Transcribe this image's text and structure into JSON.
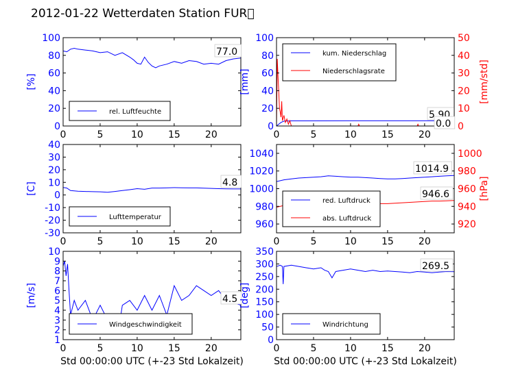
{
  "title": "2012-01-22 Wetterdaten Station FUR\u0000",
  "xlabel": "Std 00:00:00 UTC (+-23 Std Lokalzeit)",
  "colors": {
    "primary": "#0000ff",
    "secondary": "#ff0000",
    "axis": "#000000"
  },
  "chart_data": [
    {
      "type": "line",
      "ylabel": "[%]",
      "xlim": [
        0,
        24
      ],
      "ylim": [
        0,
        100
      ],
      "xticks": [
        0,
        5,
        10,
        15,
        20
      ],
      "yticks": [
        0,
        20,
        40,
        60,
        80,
        100
      ],
      "legend": [
        "rel. Luftfeuchte"
      ],
      "legend_position": "lower-left",
      "last_value_label": "77.0",
      "series": [
        {
          "name": "rel. Luftfeuchte",
          "color": "#0000ff",
          "x": [
            0,
            0.5,
            1,
            1.5,
            2,
            3,
            4,
            5,
            6,
            7,
            8,
            9,
            9.5,
            10,
            10.5,
            11,
            11.5,
            12,
            12.5,
            13,
            14,
            15,
            16,
            17,
            18,
            19,
            20,
            21,
            22,
            23,
            24
          ],
          "y": [
            85,
            84,
            87,
            88,
            87,
            86,
            85,
            83,
            84,
            80,
            83,
            78,
            75,
            71,
            70,
            78,
            72,
            68,
            66,
            68,
            70,
            73,
            71,
            74,
            73,
            70,
            71,
            70,
            74,
            76,
            77
          ]
        }
      ]
    },
    {
      "type": "line",
      "ylabel": "[mm]",
      "ylabel_right": "[mm/std]",
      "xlim": [
        0,
        24
      ],
      "ylim": [
        0,
        100
      ],
      "ylim_right": [
        0,
        50
      ],
      "xticks": [
        0,
        5,
        10,
        15,
        20
      ],
      "yticks": [
        0,
        20,
        40,
        60,
        80,
        100
      ],
      "yticks_right": [
        0,
        10,
        20,
        30,
        40,
        50
      ],
      "legend": [
        "kum. Niederschlag",
        "Niederschlagsrate"
      ],
      "legend_position": "upper-left",
      "last_value_labels": [
        "5.90",
        "0.0"
      ],
      "series": [
        {
          "name": "kum. Niederschlag",
          "color": "#0000ff",
          "axis": "left",
          "x": [
            0,
            0.3,
            0.6,
            1,
            2,
            5,
            10,
            15,
            20,
            24
          ],
          "y": [
            0,
            2,
            4,
            5.5,
            5.8,
            5.8,
            5.9,
            5.9,
            5.9,
            5.9
          ]
        },
        {
          "name": "Niederschlagsrate",
          "color": "#ff0000",
          "axis": "right",
          "x": [
            0,
            0.1,
            0.2,
            0.3,
            0.4,
            0.5,
            0.6,
            0.7,
            0.8,
            1.0,
            1.2,
            1.4,
            1.6,
            1.8,
            2.0,
            2.5,
            5,
            11,
            11.1,
            11.2,
            15,
            19,
            19.1,
            19.2,
            24
          ],
          "y": [
            0,
            38,
            28,
            20,
            10,
            8,
            5,
            14,
            3,
            6,
            2,
            4,
            1,
            3,
            0,
            0,
            0,
            0,
            1,
            0,
            0,
            0,
            1,
            0,
            0
          ]
        }
      ]
    },
    {
      "type": "line",
      "ylabel": "[C]",
      "xlim": [
        0,
        24
      ],
      "ylim": [
        -30,
        40
      ],
      "xticks": [
        0,
        5,
        10,
        15,
        20
      ],
      "yticks": [
        -30,
        -20,
        -10,
        0,
        10,
        20,
        30,
        40
      ],
      "legend": [
        "Lufttemperatur"
      ],
      "legend_position": "lower-left",
      "last_value_label": "4.8",
      "series": [
        {
          "name": "Lufttemperatur",
          "color": "#0000ff",
          "x": [
            0,
            0.5,
            1,
            2,
            3,
            4,
            5,
            6,
            7,
            8,
            9,
            10,
            11,
            12,
            13,
            14,
            15,
            16,
            17,
            18,
            19,
            20,
            21,
            22,
            23,
            24
          ],
          "y": [
            6,
            5.5,
            3.5,
            3,
            2.8,
            2.6,
            2.5,
            2.2,
            2.8,
            3.5,
            4.2,
            5,
            4.5,
            5.5,
            5.5,
            5.6,
            5.8,
            5.7,
            5.6,
            5.6,
            5.4,
            5.2,
            5.0,
            4.9,
            4.8,
            4.8
          ]
        }
      ]
    },
    {
      "type": "line",
      "ylabel_right": "[hPa]",
      "xlim": [
        0,
        24
      ],
      "ylim": [
        950,
        1050
      ],
      "ylim_right": [
        910,
        1010
      ],
      "xticks": [
        0,
        5,
        10,
        15,
        20
      ],
      "yticks": [
        960,
        980,
        1000,
        1020,
        1040
      ],
      "yticks_right": [
        920,
        940,
        960,
        980,
        1000
      ],
      "legend": [
        "red. Luftdruck",
        "abs. Luftdruck"
      ],
      "legend_position": "lower-left",
      "last_value_labels": [
        "1014.9",
        "946.6"
      ],
      "series": [
        {
          "name": "red. Luftdruck",
          "color": "#0000ff",
          "axis": "left",
          "x": [
            0,
            1,
            2,
            3,
            4,
            5,
            6,
            7,
            8,
            9,
            10,
            11,
            12,
            13,
            14,
            15,
            16,
            17,
            18,
            19,
            20,
            21,
            22,
            23,
            24
          ],
          "y": [
            1008,
            1010,
            1011,
            1012,
            1012.5,
            1013,
            1013.5,
            1014.5,
            1014,
            1013.5,
            1013,
            1013,
            1012.5,
            1012,
            1011.5,
            1011,
            1011,
            1011.5,
            1012,
            1012.5,
            1013,
            1013.5,
            1014,
            1014.5,
            1014.9
          ]
        },
        {
          "name": "abs. Luftdruck",
          "color": "#ff0000",
          "axis": "right",
          "x": [
            0,
            1,
            2,
            3,
            4,
            5,
            6,
            7,
            8,
            9,
            10,
            11,
            12,
            13,
            14,
            15,
            16,
            17,
            18,
            19,
            20,
            21,
            22,
            23,
            24
          ],
          "y": [
            939,
            941,
            942,
            943,
            943.5,
            944,
            944.5,
            945,
            945,
            944.5,
            944,
            944,
            943.5,
            943,
            943,
            943,
            943.5,
            944,
            944.5,
            945,
            945.5,
            946,
            946,
            946.3,
            946.6
          ]
        }
      ]
    },
    {
      "type": "line",
      "ylabel": "[m/s]",
      "xlabel": "Std 00:00:00 UTC (+-23 Std Lokalzeit)",
      "xlim": [
        0,
        24
      ],
      "ylim": [
        1,
        10
      ],
      "xticks": [
        0,
        5,
        10,
        15,
        20
      ],
      "yticks": [
        1,
        2,
        3,
        4,
        5,
        6,
        7,
        8,
        9,
        10
      ],
      "legend": [
        "Windgeschwindigkeit"
      ],
      "legend_position": "lower-left",
      "last_value_label": "4.5",
      "series": [
        {
          "name": "Windgeschwindigkeit",
          "color": "#0000ff",
          "x": [
            0,
            0.2,
            0.4,
            0.6,
            0.8,
            1.0,
            1.5,
            2,
            3,
            4,
            5,
            6,
            7,
            7.5,
            8,
            9,
            10,
            11,
            12,
            13,
            14,
            15,
            16,
            17,
            18,
            19,
            20,
            21,
            22,
            23,
            24
          ],
          "y": [
            8.5,
            9,
            7.5,
            8.7,
            6,
            3.5,
            5,
            4,
            5,
            3,
            4.5,
            3,
            3.5,
            2,
            4.5,
            5,
            4,
            5.5,
            4,
            5.5,
            3.5,
            6.5,
            5,
            5.5,
            6.5,
            6,
            5.5,
            6,
            5,
            4.8,
            4.5
          ]
        }
      ]
    },
    {
      "type": "line",
      "ylabel": "[deg]",
      "xlabel": "Std 00:00:00 UTC (+-23 Std Lokalzeit)",
      "xlim": [
        0,
        24
      ],
      "ylim": [
        0,
        350
      ],
      "xticks": [
        0,
        5,
        10,
        15,
        20
      ],
      "yticks": [
        0,
        50,
        100,
        150,
        200,
        250,
        300,
        350
      ],
      "legend": [
        "Windrichtung"
      ],
      "legend_position": "lower-left",
      "last_value_label": "269.5",
      "series": [
        {
          "name": "Windrichtung",
          "color": "#0000ff",
          "x": [
            0,
            0.5,
            0.8,
            0.9,
            1,
            2,
            3,
            4,
            5,
            6,
            6.5,
            7,
            7.5,
            8,
            9,
            10,
            11,
            12,
            13,
            14,
            15,
            16,
            17,
            18,
            19,
            20,
            21,
            22,
            23,
            24
          ],
          "y": [
            290,
            295,
            290,
            220,
            290,
            295,
            290,
            285,
            280,
            285,
            275,
            270,
            245,
            270,
            275,
            280,
            275,
            270,
            275,
            270,
            272,
            270,
            268,
            265,
            270,
            268,
            265,
            268,
            270,
            269.5
          ]
        }
      ]
    }
  ]
}
